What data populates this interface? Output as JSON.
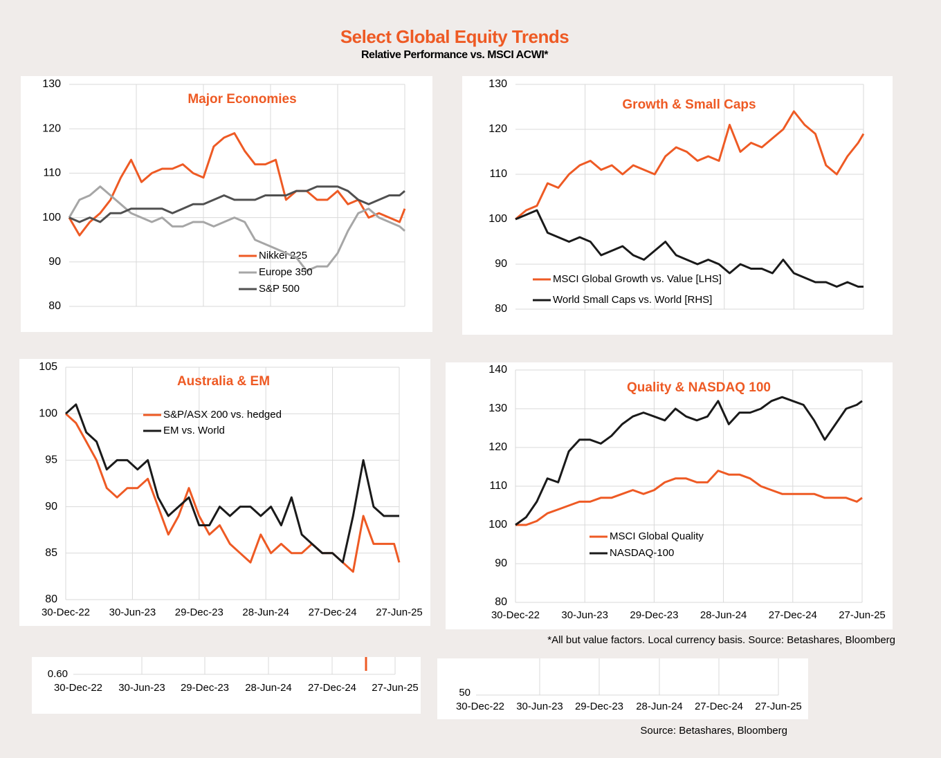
{
  "title": "Select Global Equity Trends",
  "subtitle": "Relative Performance vs. MSCI ACWI*",
  "footnote": "*All but value factors. Local currency basis.  Source: Betashares, Bloomberg",
  "chart_data": [
    {
      "type": "line",
      "title": "Major Economies",
      "x": [
        "2022-12-30",
        "2023-01-27",
        "2023-02-24",
        "2023-03-24",
        "2023-04-21",
        "2023-05-19",
        "2023-06-16",
        "2023-07-14",
        "2023-08-11",
        "2023-09-08",
        "2023-10-06",
        "2023-11-03",
        "2023-12-01",
        "2023-12-29",
        "2024-01-26",
        "2024-02-23",
        "2024-03-22",
        "2024-04-19",
        "2024-05-17",
        "2024-06-14",
        "2024-07-12",
        "2024-08-09",
        "2024-09-06",
        "2024-10-04",
        "2024-11-01",
        "2024-11-29",
        "2024-12-27",
        "2025-01-24",
        "2025-02-21",
        "2025-03-21",
        "2025-04-18",
        "2025-05-16",
        "2025-06-13",
        "2025-06-27"
      ],
      "xlim": [
        "2022-12-30",
        "2025-06-27"
      ],
      "xticks": [
        "2023-06-30",
        "2023-12-29",
        "2024-06-28",
        "2024-12-27",
        "2025-06-27"
      ],
      "ylim": [
        80,
        130
      ],
      "yticks": [
        80,
        90,
        100,
        110,
        120,
        130
      ],
      "grid": true,
      "series": [
        {
          "name": "Nikkei 225",
          "color": "#ee5a24",
          "values": [
            100,
            96,
            99,
            101,
            104,
            109,
            113,
            108,
            110,
            111,
            111,
            112,
            110,
            109,
            116,
            118,
            119,
            115,
            112,
            112,
            113,
            104,
            106,
            106,
            104,
            104,
            106,
            103,
            104,
            100,
            101,
            100,
            99,
            102
          ]
        },
        {
          "name": "Europe 350",
          "color": "#a6a6a6",
          "values": [
            100,
            104,
            105,
            107,
            105,
            103,
            101,
            100,
            99,
            100,
            98,
            98,
            99,
            99,
            98,
            99,
            100,
            99,
            95,
            94,
            93,
            92,
            91,
            88,
            89,
            89,
            92,
            97,
            101,
            102,
            100,
            99,
            98,
            97
          ]
        },
        {
          "name": "S&P 500",
          "color": "#505050",
          "values": [
            100,
            99,
            100,
            99,
            101,
            101,
            102,
            102,
            102,
            102,
            101,
            102,
            103,
            103,
            104,
            105,
            104,
            104,
            104,
            105,
            105,
            105,
            106,
            106,
            107,
            107,
            107,
            106,
            104,
            103,
            104,
            105,
            105,
            106
          ]
        }
      ]
    },
    {
      "type": "line",
      "title": "Growth & Small Caps",
      "x": [
        "2022-12-30",
        "2023-01-27",
        "2023-02-24",
        "2023-03-24",
        "2023-04-21",
        "2023-05-19",
        "2023-06-16",
        "2023-07-14",
        "2023-08-11",
        "2023-09-08",
        "2023-10-06",
        "2023-11-03",
        "2023-12-01",
        "2023-12-29",
        "2024-01-26",
        "2024-02-23",
        "2024-03-22",
        "2024-04-19",
        "2024-05-17",
        "2024-06-14",
        "2024-07-12",
        "2024-08-09",
        "2024-09-06",
        "2024-10-04",
        "2024-11-01",
        "2024-11-29",
        "2024-12-27",
        "2025-01-24",
        "2025-02-21",
        "2025-03-21",
        "2025-04-18",
        "2025-05-16",
        "2025-06-13",
        "2025-06-27"
      ],
      "xlim": [
        "2022-12-30",
        "2025-06-27"
      ],
      "xticks": [
        "2023-06-30",
        "2023-12-29",
        "2024-06-28",
        "2024-12-27",
        "2025-06-27"
      ],
      "ylim": [
        80,
        130
      ],
      "yticks": [
        80,
        90,
        100,
        110,
        120,
        130
      ],
      "grid": true,
      "series": [
        {
          "name": "MSCI Global Growth vs. Value [LHS]",
          "color": "#ee5a24",
          "values": [
            100,
            102,
            103,
            108,
            107,
            110,
            112,
            113,
            111,
            112,
            110,
            112,
            111,
            110,
            114,
            116,
            115,
            113,
            114,
            113,
            121,
            115,
            117,
            116,
            118,
            120,
            124,
            121,
            119,
            112,
            110,
            114,
            117,
            119
          ]
        },
        {
          "name": "World Small Caps vs. World [RHS]",
          "color": "#1a1a1a",
          "values": [
            100,
            101,
            102,
            97,
            96,
            95,
            96,
            95,
            92,
            93,
            94,
            92,
            91,
            93,
            95,
            92,
            91,
            90,
            91,
            90,
            88,
            90,
            89,
            89,
            88,
            91,
            88,
            87,
            86,
            86,
            85,
            86,
            85,
            85
          ]
        }
      ]
    },
    {
      "type": "line",
      "title": "Australia & EM",
      "x": [
        "2022-12-30",
        "2023-01-27",
        "2023-02-24",
        "2023-03-24",
        "2023-04-21",
        "2023-05-19",
        "2023-06-16",
        "2023-07-14",
        "2023-08-11",
        "2023-09-08",
        "2023-10-06",
        "2023-11-03",
        "2023-12-01",
        "2023-12-29",
        "2024-01-26",
        "2024-02-23",
        "2024-03-22",
        "2024-04-19",
        "2024-05-17",
        "2024-06-14",
        "2024-07-12",
        "2024-08-09",
        "2024-09-06",
        "2024-10-04",
        "2024-11-01",
        "2024-11-29",
        "2024-12-27",
        "2025-01-24",
        "2025-02-21",
        "2025-03-21",
        "2025-04-18",
        "2025-05-16",
        "2025-06-13",
        "2025-06-27"
      ],
      "xlim": [
        "2022-12-30",
        "2025-06-27"
      ],
      "xticks": [
        {
          "value": "2022-12-30",
          "label": "30-Dec-22"
        },
        {
          "value": "2023-06-30",
          "label": "30-Jun-23"
        },
        {
          "value": "2023-12-29",
          "label": "29-Dec-23"
        },
        {
          "value": "2024-06-28",
          "label": "28-Jun-24"
        },
        {
          "value": "2024-12-27",
          "label": "27-Dec-24"
        },
        {
          "value": "2025-06-27",
          "label": "27-Jun-25"
        }
      ],
      "ylim": [
        80,
        105
      ],
      "yticks": [
        80,
        85,
        90,
        95,
        100,
        105
      ],
      "grid": true,
      "series": [
        {
          "name": "S&P/ASX 200 vs. hedged",
          "color": "#ee5a24",
          "values": [
            100,
            99,
            97,
            95,
            92,
            91,
            92,
            92,
            93,
            90,
            87,
            89,
            92,
            89,
            87,
            88,
            86,
            85,
            84,
            87,
            85,
            86,
            85,
            85,
            86,
            85,
            85,
            84,
            83,
            89,
            86,
            86,
            86,
            84
          ]
        },
        {
          "name": "EM vs. World",
          "color": "#1a1a1a",
          "values": [
            100,
            101,
            98,
            97,
            94,
            95,
            95,
            94,
            95,
            91,
            89,
            90,
            91,
            88,
            88,
            90,
            89,
            90,
            90,
            89,
            90,
            88,
            91,
            87,
            86,
            85,
            85,
            84,
            89,
            95,
            90,
            89,
            89,
            89
          ]
        }
      ]
    },
    {
      "type": "line",
      "title": "Quality & NASDAQ 100",
      "x": [
        "2022-12-30",
        "2023-01-27",
        "2023-02-24",
        "2023-03-24",
        "2023-04-21",
        "2023-05-19",
        "2023-06-16",
        "2023-07-14",
        "2023-08-11",
        "2023-09-08",
        "2023-10-06",
        "2023-11-03",
        "2023-12-01",
        "2023-12-29",
        "2024-01-26",
        "2024-02-23",
        "2024-03-22",
        "2024-04-19",
        "2024-05-17",
        "2024-06-14",
        "2024-07-12",
        "2024-08-09",
        "2024-09-06",
        "2024-10-04",
        "2024-11-01",
        "2024-11-29",
        "2024-12-27",
        "2025-01-24",
        "2025-02-21",
        "2025-03-21",
        "2025-04-18",
        "2025-05-16",
        "2025-06-13",
        "2025-06-27"
      ],
      "xlim": [
        "2022-12-30",
        "2025-06-27"
      ],
      "xticks": [
        {
          "value": "2022-12-30",
          "label": "30-Dec-22"
        },
        {
          "value": "2023-06-30",
          "label": "30-Jun-23"
        },
        {
          "value": "2023-12-29",
          "label": "29-Dec-23"
        },
        {
          "value": "2024-06-28",
          "label": "28-Jun-24"
        },
        {
          "value": "2024-12-27",
          "label": "27-Dec-24"
        },
        {
          "value": "2025-06-27",
          "label": "27-Jun-25"
        }
      ],
      "ylim": [
        80,
        140
      ],
      "yticks": [
        80,
        90,
        100,
        110,
        120,
        130,
        140
      ],
      "grid": true,
      "series": [
        {
          "name": "MSCI Global Quality",
          "color": "#ee5a24",
          "values": [
            100,
            100,
            101,
            103,
            104,
            105,
            106,
            106,
            107,
            107,
            108,
            109,
            108,
            109,
            111,
            112,
            112,
            111,
            111,
            114,
            113,
            113,
            112,
            110,
            109,
            108,
            108,
            108,
            108,
            107,
            107,
            107,
            106,
            107
          ]
        },
        {
          "name": "NASDAQ-100",
          "color": "#1a1a1a",
          "values": [
            100,
            102,
            106,
            112,
            111,
            119,
            122,
            122,
            121,
            123,
            126,
            128,
            129,
            128,
            127,
            130,
            128,
            127,
            128,
            132,
            126,
            129,
            129,
            130,
            132,
            133,
            132,
            131,
            127,
            122,
            126,
            130,
            131,
            132
          ]
        }
      ]
    }
  ],
  "fragments": [
    {
      "ytick_label": "0.60",
      "xtick_labels": [
        "30-Dec-22",
        "30-Jun-23",
        "29-Dec-23",
        "28-Jun-24",
        "27-Dec-24",
        "27-Jun-25"
      ]
    },
    {
      "ytick_label": "50",
      "xtick_labels": [
        "30-Dec-22",
        "30-Jun-23",
        "29-Dec-23",
        "28-Jun-24",
        "27-Dec-24",
        "27-Jun-25"
      ],
      "source": "Source: Betashares, Bloomberg"
    }
  ]
}
